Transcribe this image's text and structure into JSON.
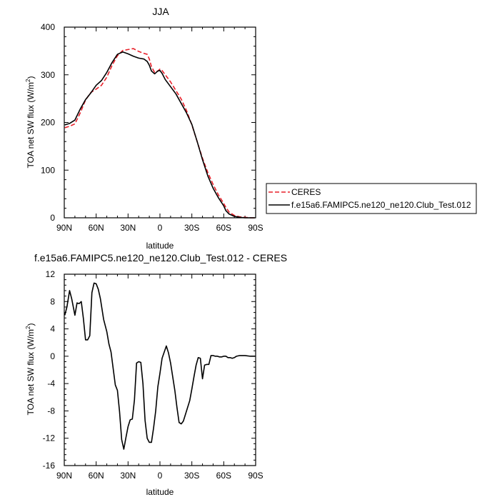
{
  "chart_data": [
    {
      "type": "line",
      "title": "JJA",
      "xlabel": "latitude",
      "ylabel": "TOA net SW flux (W/m",
      "ylabel_sup": "2",
      "ylabel_close": ")",
      "xlim": [
        90,
        -90
      ],
      "ylim": [
        0,
        400
      ],
      "xticks": [
        90,
        60,
        30,
        0,
        -30,
        -60,
        -90
      ],
      "xticklabels": [
        "90N",
        "60N",
        "30N",
        "0",
        "30S",
        "60S",
        "90S"
      ],
      "yticks": [
        0,
        100,
        200,
        300,
        400
      ],
      "yticklabels": [
        "0",
        "100",
        "200",
        "300",
        "400"
      ],
      "legend_position": "outside-right",
      "series": [
        {
          "name": "CERES",
          "color": "#e8202a",
          "style": "dashed",
          "x": [
            89.5,
            85,
            80,
            75,
            70,
            65,
            60,
            55,
            50,
            45,
            40,
            35,
            30,
            25,
            20,
            15,
            12,
            10,
            8,
            5,
            2,
            0,
            -2,
            -5,
            -10,
            -15,
            -20,
            -25,
            -30,
            -35,
            -40,
            -45,
            -50,
            -55,
            -60,
            -62,
            -65,
            -70,
            -75,
            -80,
            -85,
            -89.5
          ],
          "y": [
            189,
            192,
            197,
            220,
            247,
            263,
            270,
            278,
            295,
            320,
            340,
            351,
            353,
            355,
            349,
            345,
            343,
            333,
            317,
            305,
            308,
            312,
            309,
            300,
            285,
            267,
            249,
            225,
            195,
            160,
            125,
            95,
            70,
            48,
            30,
            22,
            12,
            5,
            2,
            1,
            0,
            0
          ]
        },
        {
          "name": "f.e15a6.FAMIPC5.ne120_ne120.Club_Test.012",
          "color": "#000000",
          "style": "solid",
          "x": [
            89.5,
            85,
            80,
            75,
            70,
            65,
            60,
            55,
            50,
            45,
            40,
            35,
            30,
            25,
            20,
            15,
            12,
            10,
            8,
            5,
            2,
            0,
            -2,
            -5,
            -10,
            -15,
            -20,
            -25,
            -30,
            -35,
            -40,
            -45,
            -50,
            -55,
            -60,
            -62,
            -65,
            -70,
            -75,
            -80,
            -85,
            -89.5
          ],
          "y": [
            195,
            198,
            205,
            228,
            248,
            262,
            278,
            288,
            305,
            326,
            343,
            348,
            344,
            339,
            335,
            333,
            328,
            320,
            308,
            302,
            308,
            309,
            303,
            290,
            275,
            260,
            240,
            220,
            196,
            160,
            122,
            88,
            62,
            42,
            25,
            15,
            8,
            3,
            1,
            0,
            0,
            0
          ]
        }
      ]
    },
    {
      "type": "line",
      "title": "f.e15a6.FAMIPC5.ne120_ne120.Club_Test.012 - CERES",
      "xlabel": "latitude",
      "ylabel": "TOA net SW flux (W/m",
      "ylabel_sup": "2",
      "ylabel_close": ")",
      "xlim": [
        90,
        -90
      ],
      "ylim": [
        -16,
        12
      ],
      "xticks": [
        90,
        60,
        30,
        0,
        -30,
        -60,
        -90
      ],
      "xticklabels": [
        "90N",
        "60N",
        "30N",
        "0",
        "30S",
        "60S",
        "90S"
      ],
      "yticks": [
        -16,
        -12,
        -8,
        -4,
        0,
        4,
        8,
        12
      ],
      "yticklabels": [
        "-16",
        "-12",
        "-8",
        "-4",
        "0",
        "4",
        "8",
        "12"
      ],
      "series": [
        {
          "name": "",
          "color": "#000000",
          "style": "solid",
          "x": [
            89.5,
            87.5,
            85,
            83,
            80,
            78,
            76,
            74,
            72,
            70,
            68,
            66,
            64,
            62,
            60,
            58,
            56,
            53,
            50,
            48,
            46,
            44,
            42,
            40,
            38,
            36,
            34,
            32,
            30,
            28,
            26,
            24,
            22,
            20,
            18,
            16,
            14,
            12,
            10,
            8,
            6,
            4,
            2,
            0,
            -2,
            -4,
            -6,
            -8,
            -10,
            -12,
            -14,
            -16,
            -18,
            -20,
            -22,
            -24,
            -26,
            -28,
            -30,
            -32,
            -34,
            -36,
            -38,
            -40,
            -42,
            -44,
            -46,
            -48,
            -50,
            -52,
            -54,
            -56,
            -58,
            -60,
            -62,
            -63,
            -64,
            -66,
            -68,
            -70,
            -72,
            -75,
            -80,
            -85,
            -89.5
          ],
          "y": [
            6.0,
            7.2,
            9.6,
            8.4,
            6.0,
            7.8,
            7.7,
            8.0,
            5.5,
            2.4,
            2.4,
            3.0,
            9.3,
            10.7,
            10.6,
            9.8,
            8.4,
            5.4,
            3.6,
            1.8,
            0.6,
            -1.8,
            -4.2,
            -5.0,
            -8.1,
            -12.2,
            -13.6,
            -11.9,
            -10.3,
            -9.3,
            -9.2,
            -6.4,
            -1.0,
            -0.8,
            -0.9,
            -4.0,
            -9.4,
            -12.0,
            -12.6,
            -12.6,
            -10.5,
            -8.0,
            -4.5,
            -2.5,
            -0.3,
            0.6,
            1.5,
            0.5,
            -1.0,
            -3.0,
            -5.0,
            -7.5,
            -9.7,
            -9.9,
            -9.5,
            -8.5,
            -7.5,
            -6.5,
            -4.8,
            -3.0,
            -1.3,
            -0.2,
            -0.3,
            -3.3,
            -1.3,
            -1.2,
            -1.2,
            0.1,
            0.1,
            0.0,
            0.0,
            -0.1,
            -0.1,
            0.0,
            0.0,
            -0.1,
            -0.2,
            -0.2,
            -0.3,
            -0.2,
            0.0,
            0.1,
            0.1,
            0.0,
            0.0
          ]
        }
      ]
    }
  ]
}
